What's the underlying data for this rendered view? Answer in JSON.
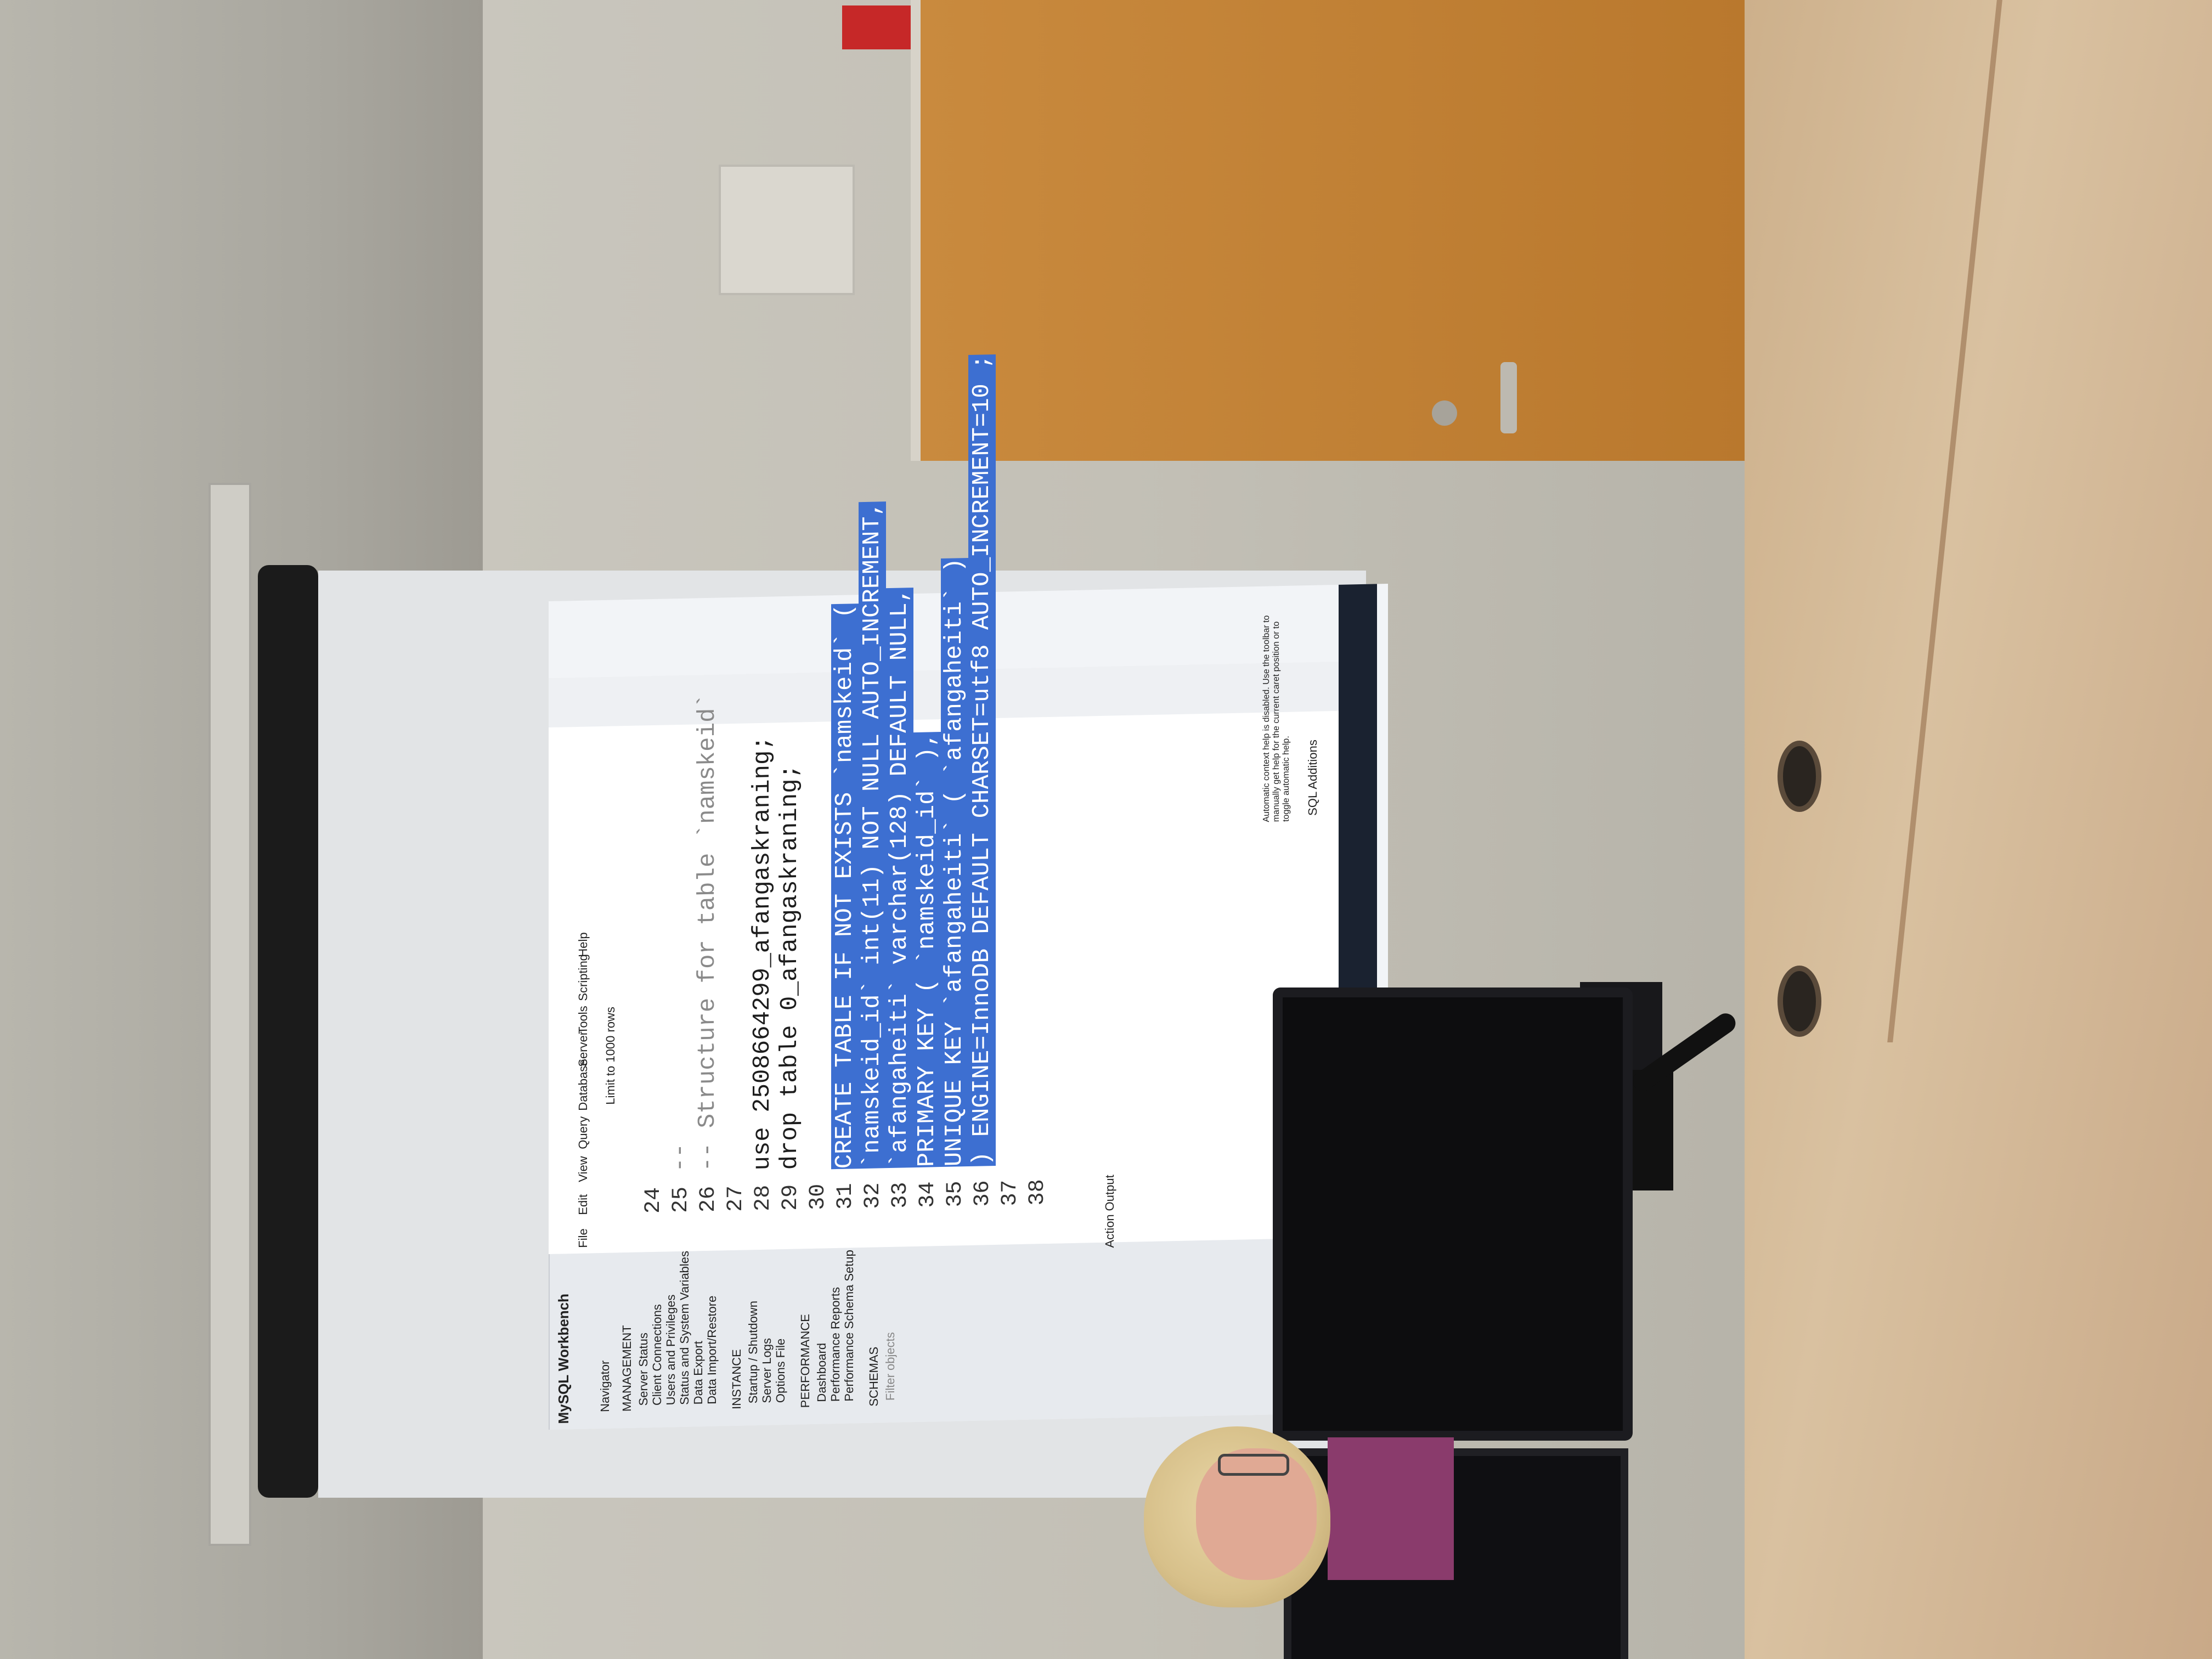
{
  "scene": {
    "colors": {
      "wall": "#c5c2b8",
      "desk": "#d4b893",
      "door": "#c4853a",
      "screen": "#e2e4e6",
      "selection": "#3d6fd1",
      "hair": "#e2cf9c"
    },
    "icons": [
      "exit-sign-icon",
      "windows-start-icon"
    ]
  },
  "projection": {
    "app_title": "MySQL Workbench",
    "menu": [
      "File",
      "Edit",
      "View",
      "Query",
      "Database",
      "Server",
      "Tools",
      "Scripting",
      "Help"
    ],
    "navigator": {
      "header": "Navigator",
      "management_title": "MANAGEMENT",
      "management_items": [
        "Server Status",
        "Client Connections",
        "Users and Privileges",
        "Status and System Variables",
        "Data Export",
        "Data Import/Restore"
      ],
      "instance_title": "INSTANCE",
      "instance_items": [
        "Startup / Shutdown",
        "Server Logs",
        "Options File"
      ],
      "performance_title": "PERFORMANCE",
      "performance_items": [
        "Dashboard",
        "Performance Reports",
        "Performance Schema Setup"
      ],
      "schemas_title": "SCHEMAS",
      "filter_placeholder": "Filter objects"
    },
    "toolbar": {
      "limit_label": "Limit to 1000 rows"
    },
    "editor": {
      "lines": [
        {
          "num": "24",
          "text": ""
        },
        {
          "num": "25",
          "text": "--"
        },
        {
          "num": "26",
          "text": "-- Structure for table `namskeid`"
        },
        {
          "num": "27",
          "text": ""
        },
        {
          "num": "28",
          "text": "use 2508664299_afangaskraning;"
        },
        {
          "num": "29",
          "text": "drop table 0_afangaskraning;"
        },
        {
          "num": "30",
          "text": ""
        },
        {
          "num": "31",
          "text": "CREATE TABLE IF NOT EXISTS `namskeid` ("
        },
        {
          "num": "32",
          "text": "  `namskeid_id` int(11) NOT NULL AUTO_INCREMENT,"
        },
        {
          "num": "33",
          "text": "  `afangaheiti` varchar(128) DEFAULT NULL,"
        },
        {
          "num": "34",
          "text": "  PRIMARY KEY ( `namskeid_id` ),"
        },
        {
          "num": "35",
          "text": "  UNIQUE KEY `afangaheiti` ( `afangaheiti` )"
        },
        {
          "num": "36",
          "text": ") ENGINE=InnoDB DEFAULT CHARSET=utf8 AUTO_INCREMENT=10 ;"
        },
        {
          "num": "37",
          "text": ""
        },
        {
          "num": "38",
          "text": ""
        }
      ]
    },
    "output": {
      "label": "Action Output"
    },
    "right_panel": {
      "tab": "SQL Additions",
      "help_text": "Automatic context help is disabled. Use the toolbar to manually get help for the current caret position or to toggle automatic help."
    }
  }
}
